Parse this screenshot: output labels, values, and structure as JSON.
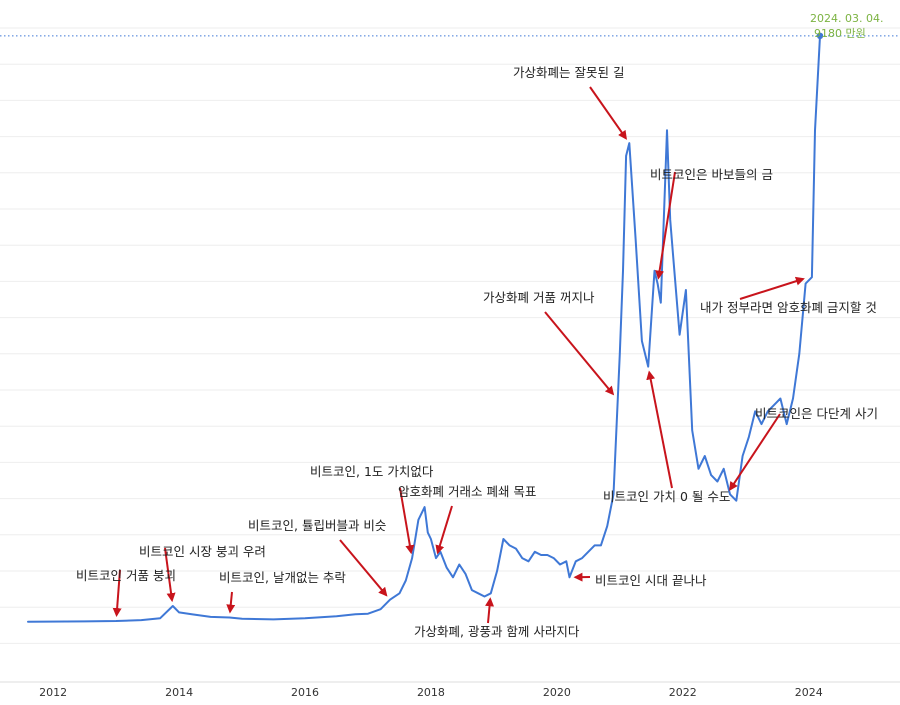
{
  "colors": {
    "line": "#3f78d6",
    "arrow": "#c8141c",
    "last_label": "#7cb342",
    "reference_line": "#3f78d6"
  },
  "chart_data": {
    "type": "line",
    "title": "",
    "xlabel": "",
    "ylabel": "",
    "xlim": [
      2011.6,
      2025.45
    ],
    "ylim": [
      0,
      9600
    ],
    "grid": true,
    "y_axis_labels_shown": false,
    "x_ticks": [
      2012,
      2014,
      2016,
      2018,
      2020,
      2022,
      2024
    ],
    "x_tick_labels": [
      "2012",
      "2014",
      "2016",
      "2018",
      "2020",
      "2022",
      "2024"
    ],
    "last_point_label": [
      "2024. 03. 04.",
      "9180 만원"
    ],
    "reference_line_value": 9180,
    "series": [
      {
        "values_unit": "만원",
        "x": [
          2011.6,
          2012.5,
          2013.0,
          2013.4,
          2013.7,
          2013.9,
          2014.0,
          2014.2,
          2014.5,
          2014.8,
          2015.0,
          2015.5,
          2016.0,
          2016.5,
          2016.8,
          2017.0,
          2017.2,
          2017.35,
          2017.5,
          2017.6,
          2017.7,
          2017.8,
          2017.9,
          2017.95,
          2018.0,
          2018.08,
          2018.15,
          2018.25,
          2018.35,
          2018.45,
          2018.55,
          2018.65,
          2018.75,
          2018.85,
          2018.95,
          2019.05,
          2019.15,
          2019.25,
          2019.35,
          2019.45,
          2019.55,
          2019.65,
          2019.75,
          2019.85,
          2019.95,
          2020.05,
          2020.15,
          2020.2,
          2020.3,
          2020.4,
          2020.5,
          2020.6,
          2020.7,
          2020.8,
          2020.9,
          2021.0,
          2021.05,
          2021.1,
          2021.15,
          2021.25,
          2021.35,
          2021.45,
          2021.55,
          2021.6,
          2021.65,
          2021.75,
          2021.8,
          2021.85,
          2021.95,
          2022.05,
          2022.15,
          2022.25,
          2022.35,
          2022.45,
          2022.55,
          2022.65,
          2022.75,
          2022.85,
          2022.95,
          2023.05,
          2023.15,
          2023.25,
          2023.35,
          2023.45,
          2023.55,
          2023.65,
          2023.75,
          2023.85,
          2023.95,
          2024.05,
          2024.1,
          2024.18
        ],
        "values": [
          5,
          10,
          15,
          30,
          60,
          250,
          150,
          120,
          80,
          70,
          50,
          40,
          60,
          90,
          120,
          130,
          200,
          350,
          450,
          650,
          1000,
          1600,
          1800,
          1400,
          1300,
          1000,
          1100,
          850,
          700,
          900,
          750,
          500,
          450,
          400,
          450,
          800,
          1300,
          1200,
          1150,
          1000,
          950,
          1100,
          1050,
          1050,
          1000,
          900,
          950,
          700,
          950,
          1000,
          1100,
          1200,
          1200,
          1500,
          2000,
          4200,
          5500,
          7300,
          7500,
          6000,
          4400,
          4000,
          5500,
          5300,
          5000,
          7700,
          6300,
          5700,
          4500,
          5200,
          3000,
          2400,
          2600,
          2300,
          2200,
          2400,
          2000,
          1900,
          2600,
          2900,
          3300,
          3100,
          3300,
          3400,
          3500,
          3100,
          3500,
          4200,
          5300,
          5400,
          7700,
          9180
        ]
      }
    ],
    "annotations": [
      {
        "text": "비트코인 거품 붕괴",
        "x": 2013.0,
        "y": 15
      },
      {
        "text": "비트코인 시장 붕괴 우려",
        "x": 2013.9,
        "y": 250
      },
      {
        "text": "비트코인, 날개없는 추락",
        "x": 2014.8,
        "y": 70
      },
      {
        "text": "비트코인, 튤립버블과 비슷",
        "x": 2017.35,
        "y": 350
      },
      {
        "text": "비트코인, 1도 가치없다",
        "x": 2017.7,
        "y": 1000
      },
      {
        "text": "암호화폐 거래소 폐쇄 목표",
        "x": 2018.08,
        "y": 1000
      },
      {
        "text": "가상화폐, 광풍과 함께 사라지다",
        "x": 2018.95,
        "y": 450
      },
      {
        "text": "비트코인 시대 끝나나",
        "x": 2020.2,
        "y": 700
      },
      {
        "text": "가상화폐 거품 꺼지나",
        "x": 2020.95,
        "y": 3500
      },
      {
        "text": "가상화폐는 잘못된 길",
        "x": 2021.15,
        "y": 7500
      },
      {
        "text": "비트코인 가치 0 될 수도",
        "x": 2021.45,
        "y": 4000
      },
      {
        "text": "비트코인은 바보들의 금",
        "x": 2021.6,
        "y": 5300
      },
      {
        "text": "비트코인은 다단계 사기",
        "x": 2022.7,
        "y": 2000
      },
      {
        "text": "내가 정부라면 암호화폐 금지할 것",
        "x": 2024.0,
        "y": 5400
      }
    ]
  }
}
